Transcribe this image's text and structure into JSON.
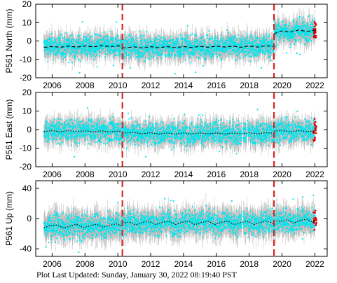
{
  "chart_data": [
    {
      "type": "scatter",
      "ylabel": "P561 North (mm)",
      "ylim": [
        -20,
        20
      ],
      "yticks": [
        -20,
        -10,
        0,
        10,
        20
      ],
      "xlim": [
        2005.0,
        2022.75
      ],
      "xticks": [
        2006,
        2008,
        2010,
        2012,
        2014,
        2016,
        2018,
        2020,
        2022
      ],
      "offset_lines_x": [
        2010.28,
        2019.51
      ],
      "colors": {
        "points": "#00e5ee",
        "error_bars": "#b9b9b9",
        "model": "#000000",
        "recent": "#dd0000",
        "offset_line": "#dd2222"
      },
      "model": [
        [
          2005.5,
          -3.5
        ],
        [
          2006.0,
          -3.0
        ],
        [
          2006.5,
          -3.4
        ],
        [
          2007.0,
          -2.8
        ],
        [
          2007.5,
          -3.3
        ],
        [
          2008.0,
          -2.7
        ],
        [
          2008.5,
          -3.2
        ],
        [
          2009.0,
          -2.6
        ],
        [
          2009.5,
          -3.0
        ],
        [
          2010.0,
          -2.7
        ],
        [
          2010.28,
          -2.8
        ],
        [
          2010.28,
          -3.8
        ],
        [
          2011.0,
          -3.2
        ],
        [
          2011.5,
          -3.8
        ],
        [
          2012.0,
          -3.1
        ],
        [
          2012.5,
          -3.7
        ],
        [
          2013.0,
          -3.0
        ],
        [
          2013.5,
          -3.6
        ],
        [
          2014.0,
          -3.0
        ],
        [
          2014.5,
          -3.5
        ],
        [
          2015.0,
          -2.9
        ],
        [
          2015.5,
          -3.4
        ],
        [
          2016.0,
          -2.8
        ],
        [
          2016.5,
          -3.3
        ],
        [
          2017.0,
          -2.8
        ],
        [
          2017.5,
          -3.4
        ],
        [
          2018.0,
          -2.7
        ],
        [
          2018.5,
          -3.3
        ],
        [
          2019.0,
          -2.6
        ],
        [
          2019.51,
          -3.0
        ],
        [
          2019.51,
          4.0
        ],
        [
          2020.0,
          5.5
        ],
        [
          2020.5,
          4.8
        ],
        [
          2021.0,
          6.0
        ],
        [
          2021.5,
          5.2
        ],
        [
          2022.0,
          5.8
        ]
      ]
    },
    {
      "type": "scatter",
      "ylabel": "P561 East (mm)",
      "ylim": [
        -20,
        20
      ],
      "yticks": [
        -20,
        -10,
        0,
        10,
        20
      ],
      "xlim": [
        2005.0,
        2022.75
      ],
      "xticks": [
        2006,
        2008,
        2010,
        2012,
        2014,
        2016,
        2018,
        2020,
        2022
      ],
      "offset_lines_x": [
        2010.28,
        2019.51
      ],
      "colors": {
        "points": "#00e5ee",
        "error_bars": "#b9b9b9",
        "model": "#000000",
        "recent": "#dd0000",
        "offset_line": "#dd2222"
      },
      "model": [
        [
          2005.5,
          -1.0
        ],
        [
          2006.0,
          -0.6
        ],
        [
          2006.5,
          -1.2
        ],
        [
          2007.0,
          -0.5
        ],
        [
          2007.5,
          -1.1
        ],
        [
          2008.0,
          -0.6
        ],
        [
          2008.5,
          -1.2
        ],
        [
          2009.0,
          -0.7
        ],
        [
          2009.5,
          -1.3
        ],
        [
          2010.0,
          -0.8
        ],
        [
          2010.28,
          -1.0
        ],
        [
          2010.28,
          -2.0
        ],
        [
          2011.0,
          -1.6
        ],
        [
          2011.5,
          -2.3
        ],
        [
          2012.0,
          -1.7
        ],
        [
          2012.5,
          -2.4
        ],
        [
          2013.0,
          -1.8
        ],
        [
          2013.5,
          -2.4
        ],
        [
          2014.0,
          -1.8
        ],
        [
          2014.5,
          -2.4
        ],
        [
          2015.0,
          -1.8
        ],
        [
          2015.5,
          -2.3
        ],
        [
          2016.0,
          -1.8
        ],
        [
          2016.5,
          -2.4
        ],
        [
          2017.0,
          -1.8
        ],
        [
          2017.5,
          -2.3
        ],
        [
          2018.0,
          -1.7
        ],
        [
          2018.5,
          -2.3
        ],
        [
          2019.0,
          -1.7
        ],
        [
          2019.51,
          -2.0
        ],
        [
          2019.51,
          -0.8
        ],
        [
          2020.0,
          -0.4
        ],
        [
          2020.5,
          -1.2
        ],
        [
          2021.0,
          -0.5
        ],
        [
          2021.5,
          -1.1
        ],
        [
          2022.0,
          -0.6
        ]
      ]
    },
    {
      "type": "scatter",
      "ylabel": "P561 Up (mm)",
      "ylim": [
        -50,
        50
      ],
      "yticks": [
        -40,
        0,
        40
      ],
      "xlim": [
        2005.0,
        2022.75
      ],
      "xticks": [
        2006,
        2008,
        2010,
        2012,
        2014,
        2016,
        2018,
        2020,
        2022
      ],
      "offset_lines_x": [
        2010.28,
        2019.51
      ],
      "colors": {
        "points": "#00e5ee",
        "error_bars": "#b9b9b9",
        "model": "#000000",
        "recent": "#dd0000",
        "offset_line": "#dd2222"
      },
      "model": [
        [
          2005.5,
          -12.0
        ],
        [
          2005.9,
          -9.0
        ],
        [
          2006.3,
          -8.5
        ],
        [
          2006.7,
          -12.5
        ],
        [
          2007.1,
          -10.0
        ],
        [
          2007.5,
          -7.5
        ],
        [
          2007.9,
          -12.0
        ],
        [
          2008.3,
          -9.5
        ],
        [
          2008.7,
          -7.5
        ],
        [
          2009.1,
          -11.5
        ],
        [
          2009.5,
          -9.0
        ],
        [
          2009.9,
          -7.0
        ],
        [
          2010.28,
          -10.0
        ],
        [
          2010.28,
          -6.0
        ],
        [
          2010.7,
          -4.5
        ],
        [
          2011.1,
          -8.5
        ],
        [
          2011.5,
          -5.0
        ],
        [
          2011.9,
          -3.5
        ],
        [
          2012.3,
          -8.0
        ],
        [
          2012.7,
          -5.0
        ],
        [
          2013.1,
          -3.5
        ],
        [
          2013.5,
          -8.0
        ],
        [
          2013.9,
          -5.0
        ],
        [
          2014.3,
          -3.5
        ],
        [
          2014.7,
          -8.0
        ],
        [
          2015.1,
          -5.0
        ],
        [
          2015.5,
          -3.5
        ],
        [
          2015.9,
          -8.0
        ],
        [
          2016.3,
          -5.0
        ],
        [
          2016.7,
          -3.5
        ],
        [
          2017.1,
          -8.0
        ],
        [
          2017.5,
          -5.0
        ],
        [
          2017.9,
          -3.5
        ],
        [
          2018.3,
          -8.0
        ],
        [
          2018.7,
          -5.0
        ],
        [
          2019.1,
          -3.5
        ],
        [
          2019.51,
          -7.0
        ],
        [
          2019.51,
          -2.5
        ],
        [
          2019.9,
          -4.0
        ],
        [
          2020.3,
          -1.5
        ],
        [
          2020.7,
          -6.0
        ],
        [
          2021.1,
          -2.5
        ],
        [
          2021.5,
          -1.0
        ],
        [
          2021.9,
          -5.0
        ],
        [
          2022.0,
          -3.0
        ]
      ]
    }
  ],
  "footer": {
    "label": "Plot Last Updated:",
    "timestamp": "Sunday, January 30, 2022 08:19:40 PST"
  }
}
